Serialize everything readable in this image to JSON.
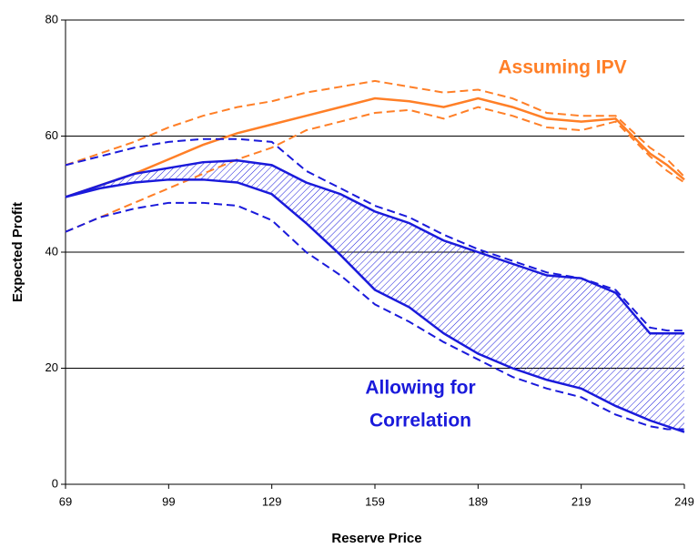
{
  "chart_data": {
    "type": "line",
    "x_label": "Reserve Price",
    "y_label": "Expected Profit",
    "x": [
      69,
      79,
      89,
      99,
      109,
      119,
      129,
      139,
      149,
      159,
      169,
      179,
      189,
      199,
      209,
      219,
      229,
      239,
      244,
      249
    ],
    "xlim": [
      69,
      249
    ],
    "xticks": [
      69,
      99,
      129,
      159,
      189,
      219,
      249
    ],
    "ylim": [
      0,
      80
    ],
    "yticks": [
      0,
      20,
      40,
      60,
      80
    ],
    "grid": true,
    "series": [
      {
        "color": "#ff7f27",
        "dashed": false,
        "values": [
          49.5,
          51.5,
          53.5,
          56,
          58.5,
          60.5,
          62,
          63.5,
          65,
          66.5,
          66,
          65,
          66.5,
          65,
          63,
          62.5,
          63,
          57,
          55,
          52.5
        ]
      },
      {
        "color": "#ff7f27",
        "dashed": true,
        "values": [
          55,
          57,
          59,
          61.5,
          63.5,
          65,
          66,
          67.5,
          68.5,
          69.5,
          68.5,
          67.5,
          68,
          66.5,
          64,
          63.5,
          63.5,
          58,
          56,
          53
        ]
      },
      {
        "color": "#ff7f27",
        "dashed": true,
        "values": [
          43.5,
          46,
          48.5,
          51,
          53.5,
          56,
          58,
          61,
          62.5,
          64,
          64.5,
          63,
          65,
          63.5,
          61.5,
          61,
          62.5,
          56.5,
          54,
          52
        ]
      },
      {
        "color": "#1a1adb",
        "dashed": false,
        "hatch_to_next": true,
        "values": [
          49.5,
          51.5,
          53.5,
          54.5,
          55.5,
          55.8,
          55,
          52,
          50,
          47,
          45,
          42,
          40,
          38,
          36,
          35.5,
          33,
          26,
          26,
          26
        ]
      },
      {
        "color": "#1a1adb",
        "dashed": false,
        "values": [
          49.5,
          51,
          52,
          52.5,
          52.5,
          52,
          50,
          45,
          39.5,
          33.5,
          30.5,
          26,
          22.5,
          20,
          18,
          16.5,
          13.5,
          11,
          10,
          9
        ]
      },
      {
        "color": "#1a1adb",
        "dashed": true,
        "values": [
          55,
          56.5,
          58,
          59,
          59.5,
          59.5,
          59,
          54,
          51,
          48,
          46,
          43,
          40.5,
          38.5,
          36.5,
          35.5,
          33.5,
          27,
          26.5,
          26.5
        ]
      },
      {
        "color": "#1a1adb",
        "dashed": true,
        "values": [
          43.5,
          46,
          47.5,
          48.5,
          48.5,
          48,
          45.5,
          40,
          36,
          31,
          28,
          24.5,
          21.5,
          18.5,
          16.5,
          15,
          12,
          10,
          9.5,
          9.5
        ]
      }
    ],
    "annotations": [
      {
        "text": "Assuming IPV",
        "color": "#ff7f27"
      },
      {
        "text": "Allowing for",
        "color": "#1a1adb"
      },
      {
        "text": "Correlation",
        "color": "#1a1adb"
      }
    ]
  }
}
